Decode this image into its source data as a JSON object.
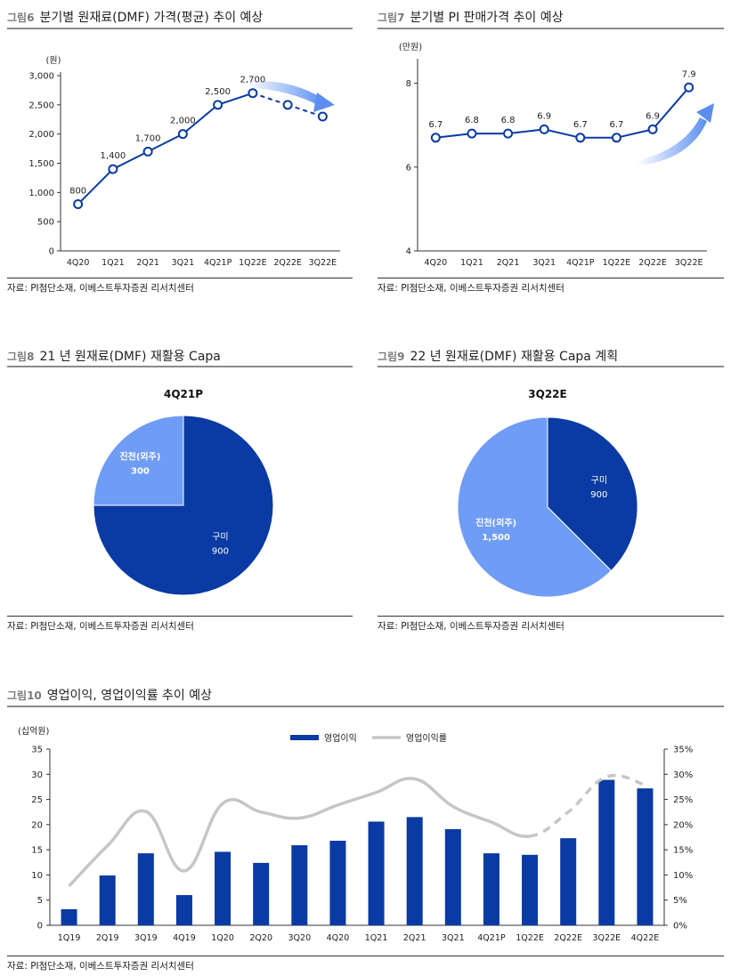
{
  "figures": [
    {
      "num": "그림6",
      "title": "분기별 원재료(DMF) 가격(평균) 추이 예상",
      "source": "자료: PI첨단소재, 이베스트투자증권 리서치센터"
    },
    {
      "num": "그림7",
      "title": "분기별 PI 판매가격 추이 예상",
      "source": "자료: PI첨단소재, 이베스트투자증권 리서치센터"
    },
    {
      "num": "그림8",
      "title": "21 년 원재료(DMF) 재활용 Capa",
      "source": "자료: PI첨단소재, 이베스트투자증권 리서치센터"
    },
    {
      "num": "그림9",
      "title": "22 년 원재료(DMF) 재활용 Capa 계획",
      "source": "자료: PI첨단소재, 이베스트투자증권 리서치센터"
    },
    {
      "num": "그림10",
      "title": "영업이익, 영업이익률 추이 예상",
      "source": "자료: PI첨단소재, 이베스트투자증권 리서치센터"
    }
  ],
  "colors": {
    "navy": "#0a3aa3",
    "light_blue": "#6f9cf5",
    "gray_line": "#c6c6c6",
    "arrow": "#5b8ef0"
  },
  "chart_data": [
    {
      "type": "line",
      "unit_label": "(원)",
      "categories": [
        "4Q20",
        "1Q21",
        "2Q21",
        "3Q21",
        "4Q21P",
        "1Q22E",
        "2Q22E",
        "3Q22E"
      ],
      "values": [
        800,
        1400,
        1700,
        2000,
        2500,
        2700,
        2500,
        2300
      ],
      "data_labels": [
        "800",
        "1,400",
        "1,700",
        "2,000",
        "2,500",
        "2,700",
        "",
        ""
      ],
      "dashed_from_index": 5,
      "ylim": [
        0,
        3000
      ],
      "yticks": [
        "0",
        "500",
        "1,000",
        "1,500",
        "2,000",
        "2,500",
        "3,000"
      ]
    },
    {
      "type": "line",
      "unit_label": "(만원)",
      "categories": [
        "4Q20",
        "1Q21",
        "2Q21",
        "3Q21",
        "4Q21P",
        "1Q22E",
        "2Q22E",
        "3Q22E"
      ],
      "values": [
        6.7,
        6.8,
        6.8,
        6.9,
        6.7,
        6.7,
        6.9,
        7.9
      ],
      "data_labels": [
        "6.7",
        "6.8",
        "6.8",
        "6.9",
        "6.7",
        "6.7",
        "6.9",
        "7.9"
      ],
      "ylim": [
        4,
        8.5
      ],
      "yticks": [
        "4",
        "6",
        "8"
      ]
    },
    {
      "type": "pie",
      "title": "4Q21P",
      "slices": [
        {
          "name": "구미",
          "value": 900,
          "label": "900"
        },
        {
          "name": "진천(외주)",
          "value": 300,
          "label": "300"
        }
      ]
    },
    {
      "type": "pie",
      "title": "3Q22E",
      "slices": [
        {
          "name": "구미",
          "value": 900,
          "label": "900"
        },
        {
          "name": "진천(외주)",
          "value": 1500,
          "label": "1,500"
        }
      ]
    },
    {
      "type": "bar",
      "unit_label": "(십억원)",
      "categories": [
        "1Q19",
        "2Q19",
        "3Q19",
        "4Q19",
        "1Q20",
        "2Q20",
        "3Q20",
        "4Q20",
        "1Q21",
        "2Q21",
        "3Q21",
        "4Q21P",
        "1Q22E",
        "2Q22E",
        "3Q22E",
        "4Q22E"
      ],
      "series": [
        {
          "name": "영업이익",
          "axis": "left",
          "values": [
            3.2,
            9.9,
            14.3,
            6.0,
            14.6,
            12.4,
            15.9,
            16.8,
            20.6,
            21.5,
            19.1,
            14.3,
            14.0,
            17.3,
            28.9,
            27.2
          ]
        },
        {
          "name": "영업이익률",
          "axis": "right",
          "type": "line",
          "values": [
            7.8,
            15.8,
            22.6,
            10.8,
            24.2,
            22.5,
            21.3,
            23.9,
            26.4,
            29.1,
            23.6,
            20.5,
            17.7,
            22.5,
            29.5,
            27.9
          ],
          "dashed_from_index": 12
        }
      ],
      "ylim": [
        0,
        35
      ],
      "yticks": [
        "0",
        "5",
        "10",
        "15",
        "20",
        "25",
        "30",
        "35"
      ],
      "y2lim": [
        0,
        35
      ],
      "y2ticks": [
        "0%",
        "5%",
        "10%",
        "15%",
        "20%",
        "25%",
        "30%",
        "35%"
      ],
      "legend": "top-center"
    }
  ]
}
